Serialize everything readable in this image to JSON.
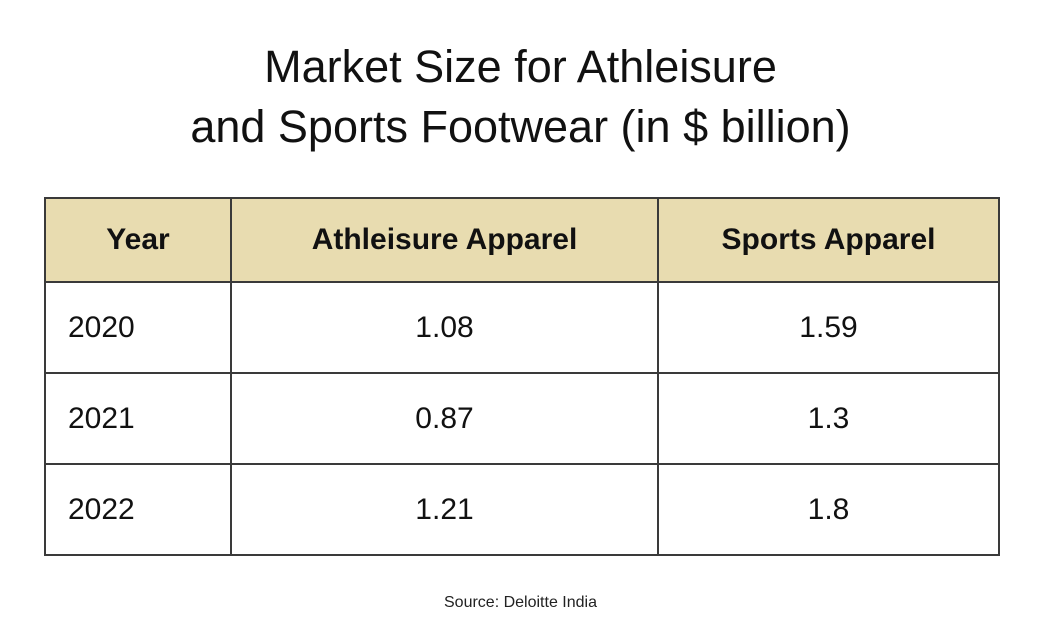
{
  "title": [
    "Market Size for Athleisure",
    "and Sports Footwear (in $ billion)"
  ],
  "table": {
    "header": [
      "Year",
      "Athleisure Apparel",
      "Sports Apparel"
    ],
    "rows": [
      [
        "2020",
        "1.08",
        "1.59"
      ],
      [
        "2021",
        "0.87",
        "1.3"
      ],
      [
        "2022",
        "1.21",
        "1.8"
      ]
    ]
  },
  "source": "Source: Deloitte India"
}
